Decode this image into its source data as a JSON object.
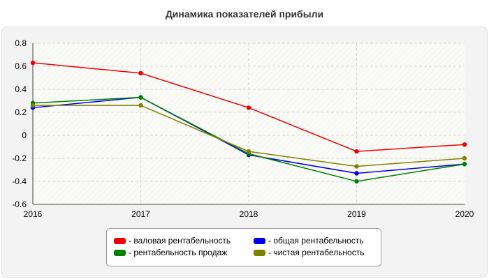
{
  "chart_data": {
    "type": "line",
    "title": "Динамика показателей прибыли",
    "x": [
      "2016",
      "2017",
      "2018",
      "2019",
      "2020"
    ],
    "ylim": [
      -0.6,
      0.8
    ],
    "yticks": [
      0.8,
      0.6,
      0.4,
      0.2,
      0,
      -0.2,
      -0.4,
      -0.6
    ],
    "ytick_labels": [
      "0.8",
      "0.6",
      "0.4",
      "0.2",
      "0",
      "-0.2",
      "-0.4",
      "-0.6"
    ],
    "grid": true,
    "legend_position": "bottom",
    "series": [
      {
        "name": "- валовая рентабельность",
        "color": "#ee0000",
        "values": [
          0.63,
          0.54,
          0.24,
          -0.14,
          -0.08
        ]
      },
      {
        "name": "- общая рентабельность",
        "color": "#0000ee",
        "values": [
          0.24,
          0.33,
          -0.17,
          -0.33,
          -0.25
        ]
      },
      {
        "name": "- рентабельность продаж",
        "color": "#008000",
        "values": [
          0.28,
          0.33,
          -0.16,
          -0.4,
          -0.25
        ]
      },
      {
        "name": "- чистая рентабельность",
        "color": "#808000",
        "values": [
          0.26,
          0.26,
          -0.14,
          -0.27,
          -0.2
        ]
      }
    ]
  }
}
